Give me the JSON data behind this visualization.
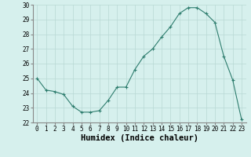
{
  "x": [
    0,
    1,
    2,
    3,
    4,
    5,
    6,
    7,
    8,
    9,
    10,
    11,
    12,
    13,
    14,
    15,
    16,
    17,
    18,
    19,
    20,
    21,
    22,
    23
  ],
  "y": [
    25.0,
    24.2,
    24.1,
    23.9,
    23.1,
    22.7,
    22.7,
    22.8,
    23.5,
    24.4,
    24.4,
    25.6,
    26.5,
    27.0,
    27.8,
    28.5,
    29.4,
    29.8,
    29.8,
    29.4,
    28.8,
    26.5,
    24.9,
    22.2
  ],
  "line_color": "#2e7d6e",
  "marker": "+",
  "bg_color": "#d6f0ed",
  "grid_color": "#b8d8d4",
  "xlabel": "Humidex (Indice chaleur)",
  "ylim": [
    22,
    30
  ],
  "xlim": [
    -0.5,
    23.5
  ],
  "yticks": [
    22,
    23,
    24,
    25,
    26,
    27,
    28,
    29,
    30
  ],
  "xticks": [
    0,
    1,
    2,
    3,
    4,
    5,
    6,
    7,
    8,
    9,
    10,
    11,
    12,
    13,
    14,
    15,
    16,
    17,
    18,
    19,
    20,
    21,
    22,
    23
  ],
  "tick_label_fontsize": 5.5,
  "xlabel_fontsize": 7.5
}
